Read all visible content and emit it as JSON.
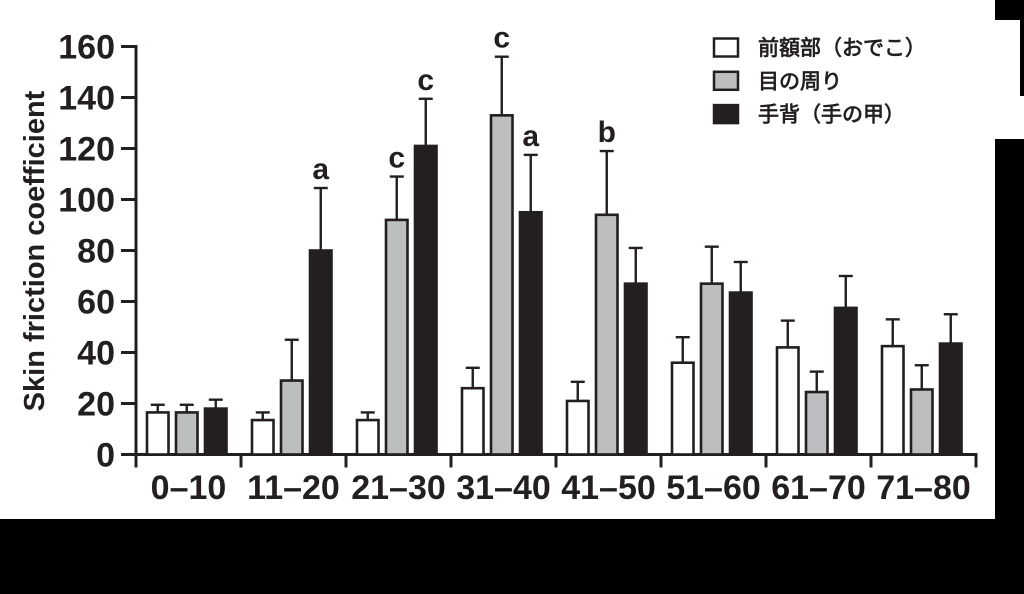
{
  "figure": {
    "kind": "grouped-bar-chart-scan",
    "background": "#ffffff"
  },
  "chart_data": {
    "type": "bar",
    "title": "",
    "xlabel": "",
    "ylabel": "Skin friction coefficient",
    "ylim": [
      0,
      160
    ],
    "yticks": [
      0,
      20,
      40,
      60,
      80,
      100,
      120,
      140,
      160
    ],
    "grid": false,
    "error_bars": "upper-only",
    "categories": [
      "0–10",
      "11–20",
      "21–30",
      "31–40",
      "41–50",
      "51–60",
      "61–70",
      "71–80"
    ],
    "legend": {
      "position": "top-right-inside",
      "items": [
        {
          "label": "前額部（おでこ）",
          "fill": "#ffffff"
        },
        {
          "label": "目の周り",
          "fill": "#bcbec0"
        },
        {
          "label": "手背（手の甲）",
          "fill": "#231f20"
        }
      ]
    },
    "series": [
      {
        "name": "前額部（おでこ）",
        "fill": "#ffffff",
        "values": [
          16.5,
          13.5,
          13.5,
          26,
          21,
          36,
          42,
          42.5
        ],
        "errors": [
          3,
          3,
          3,
          8,
          7.5,
          10,
          10.5,
          10.5
        ],
        "letters": [
          null,
          null,
          null,
          null,
          null,
          null,
          null,
          null
        ]
      },
      {
        "name": "目の周り",
        "fill": "#bcbec0",
        "values": [
          16.5,
          29,
          92,
          133,
          94,
          67,
          24.5,
          25.5
        ],
        "errors": [
          3,
          16,
          17,
          23,
          25,
          14.5,
          8,
          9.5
        ],
        "letters": [
          null,
          null,
          "c",
          "c",
          "b",
          null,
          null,
          null
        ]
      },
      {
        "name": "手背（手の甲）",
        "fill": "#231f20",
        "values": [
          18,
          80,
          121,
          95,
          67,
          63.5,
          57.5,
          43.5
        ],
        "errors": [
          3.5,
          24.5,
          18.5,
          22.5,
          14,
          12,
          12.5,
          11.5
        ],
        "letters": [
          null,
          "a",
          "c",
          "a",
          null,
          null,
          null,
          null
        ]
      }
    ],
    "colors": {
      "axis": "#231f20",
      "text": "#231f20",
      "bar_outline": "#231f20"
    }
  }
}
